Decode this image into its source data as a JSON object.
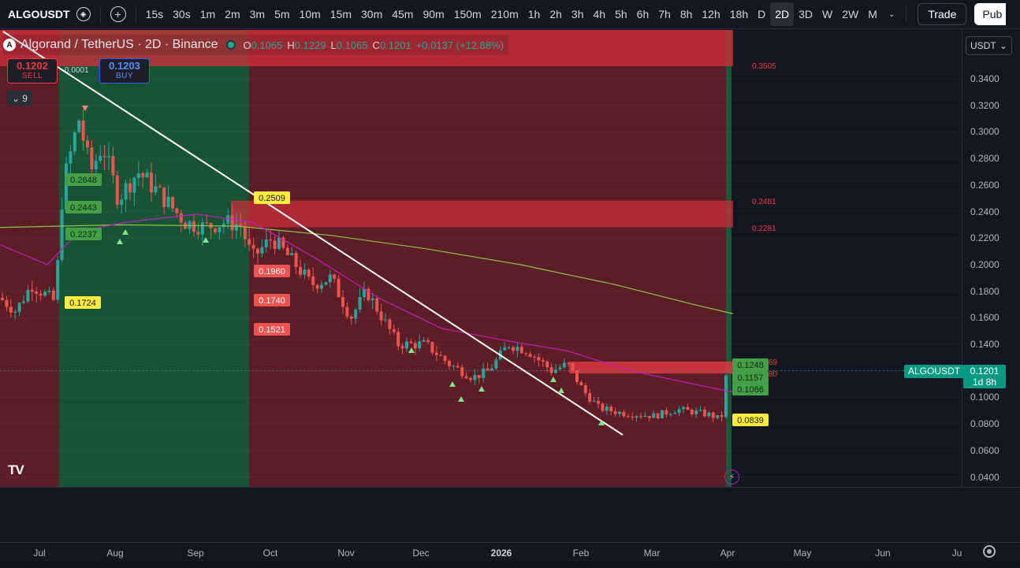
{
  "toolbar": {
    "symbol": "ALGOUSDT",
    "intervals": [
      "15s",
      "30s",
      "1m",
      "2m",
      "3m",
      "5m",
      "10m",
      "15m",
      "30m",
      "45m",
      "90m",
      "150m",
      "210m",
      "1h",
      "2h",
      "3h",
      "4h",
      "5h",
      "6h",
      "7h",
      "8h",
      "12h",
      "18h",
      "D",
      "2D",
      "3D",
      "W",
      "2W",
      "M"
    ],
    "active_interval": "2D",
    "trade_label": "Trade",
    "publish_label": "Pub"
  },
  "legend": {
    "title": "Algorand / TetherUS · 2D · Binance",
    "o_label": "O",
    "o": "0.1065",
    "h_label": "H",
    "h": "0.1229",
    "l_label": "L",
    "l": "0.1065",
    "c_label": "C",
    "c": "0.1201",
    "change": "+0.0137 (+12.88%)"
  },
  "order": {
    "sell_price": "0.1202",
    "sell_label": "SELL",
    "buy_price": "0.1203",
    "buy_label": "BUY",
    "spread": "0.0001",
    "collapsed_count": "9"
  },
  "price_scale": {
    "currency": "USDT",
    "ticks": [
      "0.3400",
      "0.3200",
      "0.3000",
      "0.2800",
      "0.2600",
      "0.2400",
      "0.2200",
      "0.2000",
      "0.1800",
      "0.1600",
      "0.1400",
      "0.1200",
      "0.1000",
      "0.0800",
      "0.0600",
      "0.0400"
    ],
    "current_symbol": "ALGOUSDT",
    "current_price": "0.1201",
    "countdown": "1d 8h"
  },
  "time_axis": {
    "labels": [
      "Jul",
      "Aug",
      "Sep",
      "Oct",
      "Nov",
      "Dec",
      "2026",
      "Feb",
      "Mar",
      "Apr",
      "May",
      "Jun",
      "Ju"
    ]
  },
  "annotations": {
    "zone_labels": [
      "0.3505",
      "0.2481",
      "0.2281"
    ],
    "partial_labels": [
      "69",
      "80"
    ],
    "green_labels": [
      "0.2648",
      "0.2443",
      "0.2237"
    ],
    "yellow_labels": [
      "0.2509",
      "0.1724",
      "0.0839"
    ],
    "red_labels": [
      "0.1960",
      "0.1740",
      "0.1521"
    ],
    "right_green_labels": [
      "0.1248",
      "0.1157",
      "0.1066"
    ]
  },
  "colors": {
    "background": "#131722",
    "up": "#26a69a",
    "down": "#ef5350",
    "green_zone": "#1b5e3a",
    "red_zone": "#6b1f28",
    "ma_fast": "#c41ebd",
    "ma_slow": "#8bc34a",
    "accent_label": "#089981"
  },
  "icons": {
    "symbol_icon": "eye-shield-icon",
    "add_icon": "plus-circle-icon",
    "dropdown_icon": "chevron-down-icon",
    "settings_icon": "gear-icon",
    "logo_icon": "tradingview-logo-icon",
    "alert_icon": "lightning-icon"
  }
}
